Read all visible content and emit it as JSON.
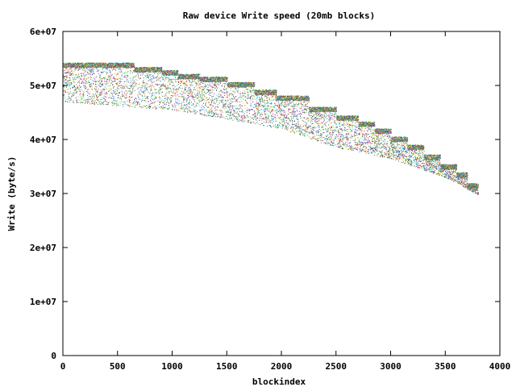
{
  "chart_data": {
    "type": "scatter",
    "title": "Raw device Write speed (20mb blocks)",
    "xlabel": "blockindex",
    "ylabel": "Write (byte/s)",
    "xlim": [
      0,
      4000
    ],
    "ylim": [
      0,
      60000000
    ],
    "x_ticks": [
      0,
      500,
      1000,
      1500,
      2000,
      2500,
      3000,
      3500,
      4000
    ],
    "y_ticks": [
      0,
      10000000,
      20000000,
      30000000,
      40000000,
      50000000,
      60000000
    ],
    "x_tick_labels": [
      "0",
      "500",
      "1000",
      "1500",
      "2000",
      "2500",
      "3000",
      "3500",
      "4000"
    ],
    "y_tick_labels": [
      "0",
      "1e+07",
      "2e+07",
      "3e+07",
      "4e+07",
      "5e+07",
      "6e+07"
    ],
    "grid": false,
    "legend": "none",
    "point_colors": [
      "#ff0000",
      "#00c000",
      "#0080ff",
      "#c000ff",
      "#00eeee",
      "#c04000",
      "#c8c800",
      "#4169e1",
      "#ffc020",
      "#008040"
    ],
    "x_range_points": [
      0,
      3800
    ],
    "band_segments": [
      {
        "x": [
          0,
          650
        ],
        "y": 53800000
      },
      {
        "x": [
          650,
          900
        ],
        "y": 53000000
      },
      {
        "x": [
          900,
          1050
        ],
        "y": 52400000
      },
      {
        "x": [
          1050,
          1250
        ],
        "y": 51700000
      },
      {
        "x": [
          1250,
          1500
        ],
        "y": 51200000
      },
      {
        "x": [
          1500,
          1750
        ],
        "y": 50200000
      },
      {
        "x": [
          1750,
          1950
        ],
        "y": 48800000
      },
      {
        "x": [
          1950,
          2250
        ],
        "y": 47700000
      },
      {
        "x": [
          2250,
          2500
        ],
        "y": 45600000
      },
      {
        "x": [
          2500,
          2700
        ],
        "y": 44000000
      },
      {
        "x": [
          2700,
          2850
        ],
        "y": 42900000
      },
      {
        "x": [
          2850,
          3000
        ],
        "y": 41600000
      },
      {
        "x": [
          3000,
          3150
        ],
        "y": 40100000
      },
      {
        "x": [
          3150,
          3300
        ],
        "y": 38600000
      },
      {
        "x": [
          3300,
          3450
        ],
        "y": 36800000
      },
      {
        "x": [
          3450,
          3600
        ],
        "y": 35000000
      },
      {
        "x": [
          3600,
          3700
        ],
        "y": 33500000
      },
      {
        "x": [
          3700,
          3800
        ],
        "y": 31500000
      }
    ],
    "lower_envelope": [
      {
        "x": 0,
        "y": 47000000
      },
      {
        "x": 1000,
        "y": 45500000
      },
      {
        "x": 2000,
        "y": 42000000
      },
      {
        "x": 2500,
        "y": 38500000
      },
      {
        "x": 3000,
        "y": 36500000
      },
      {
        "x": 3500,
        "y": 33000000
      },
      {
        "x": 3800,
        "y": 29800000
      }
    ]
  }
}
